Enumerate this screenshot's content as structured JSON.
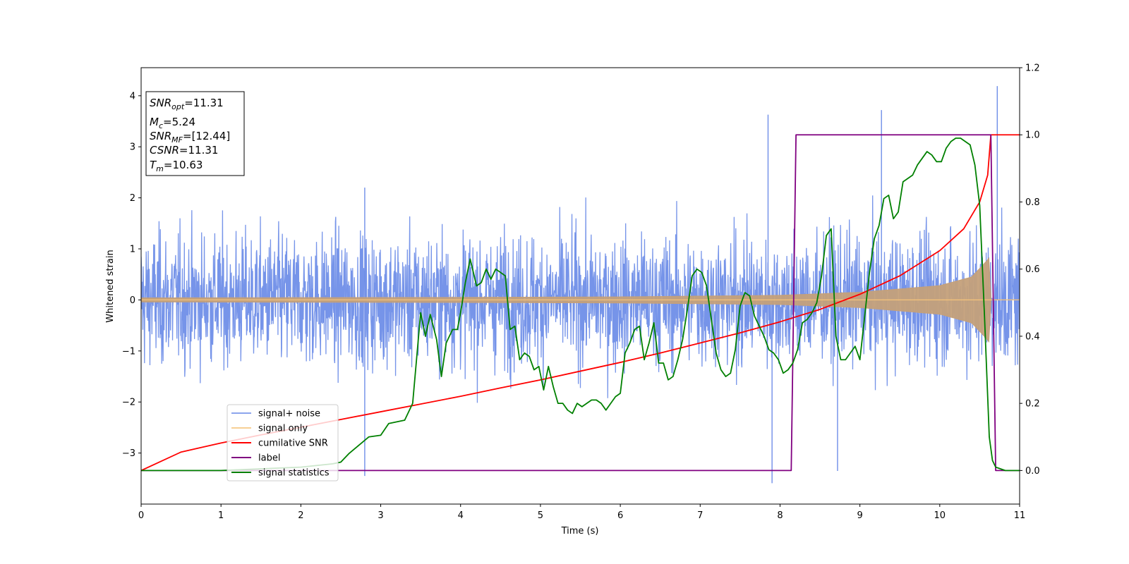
{
  "chart_data": {
    "type": "line",
    "title": "",
    "xlabel": "Time (s)",
    "ylabel": "Whitened strain",
    "xlim": [
      0,
      11
    ],
    "ylim_left": [
      -4,
      4.55
    ],
    "ylim_right": [
      -0.1,
      1.2
    ],
    "x_ticks": [
      "0",
      "1",
      "2",
      "3",
      "4",
      "5",
      "6",
      "7",
      "8",
      "9",
      "10",
      "11"
    ],
    "y_ticks_left": [
      "−3",
      "−2",
      "−1",
      "0",
      "1",
      "2",
      "3",
      "4"
    ],
    "y_ticks_right": [
      "0.0",
      "0.2",
      "0.4",
      "0.6",
      "0.8",
      "1.0",
      "1.2"
    ],
    "grid": false,
    "legend_position": "lower-left",
    "legend": [
      "signal+ noise",
      "signal only",
      "cumilative SNR",
      "label",
      "signal statistics"
    ],
    "colors": {
      "noise": "#6f8ee8",
      "signal": "#f5c37a",
      "overlap": "#c4a07a",
      "csnr": "#ff0000",
      "label": "#800080",
      "stats": "#008000"
    },
    "annotation": {
      "snr_opt": {
        "base": "SNR",
        "sub": "opt",
        "value": "=11.31"
      },
      "mc": {
        "base": "M",
        "sub": "c",
        "value": "=5.24"
      },
      "snr_mf": {
        "base": "SNR",
        "sub": "MF",
        "value": "=[12.44]"
      },
      "csnr": {
        "base": "CSNR",
        "sub": "",
        "value": "=11.31"
      },
      "tm": {
        "base": "T",
        "sub": "m",
        "value": "=10.63"
      }
    },
    "series": [
      {
        "name": "signal+ noise",
        "axis": "left",
        "style": "dense noise band",
        "core_band": [
          -1.5,
          1.5
        ],
        "peaks_max": [
          [
            2.8,
            2.2
          ],
          [
            7.85,
            3.63
          ],
          [
            9.27,
            3.72
          ],
          [
            10.72,
            4.19
          ]
        ],
        "peaks_min": [
          [
            2.8,
            -3.45
          ],
          [
            7.9,
            -3.59
          ],
          [
            8.72,
            -3.35
          ]
        ]
      },
      {
        "name": "signal only",
        "axis": "left",
        "style": "chirp envelope",
        "envelope": [
          [
            0,
            0.04
          ],
          [
            2,
            0.045
          ],
          [
            4,
            0.05
          ],
          [
            6,
            0.06
          ],
          [
            8,
            0.09
          ],
          [
            9,
            0.15
          ],
          [
            10,
            0.28
          ],
          [
            10.4,
            0.45
          ],
          [
            10.58,
            0.75
          ],
          [
            10.63,
            0.85
          ],
          [
            10.64,
            0.0
          ],
          [
            11,
            0.0
          ]
        ]
      },
      {
        "name": "cumilative SNR",
        "axis": "right",
        "x": [
          0,
          0.5,
          1,
          1.5,
          2,
          2.5,
          3,
          3.5,
          4,
          4.5,
          5,
          5.5,
          6,
          6.5,
          7,
          7.5,
          8,
          8.5,
          9,
          9.5,
          10,
          10.3,
          10.5,
          10.6,
          10.64,
          11
        ],
        "values": [
          0.0,
          0.055,
          0.082,
          0.106,
          0.129,
          0.152,
          0.175,
          0.198,
          0.221,
          0.246,
          0.27,
          0.296,
          0.322,
          0.35,
          0.38,
          0.41,
          0.443,
          0.48,
          0.525,
          0.58,
          0.655,
          0.72,
          0.8,
          0.88,
          1.0,
          1.0
        ]
      },
      {
        "name": "label",
        "axis": "right",
        "x": [
          0,
          8.14,
          8.2,
          10.64,
          10.7,
          11
        ],
        "values": [
          0,
          0,
          1,
          1,
          0,
          0
        ]
      },
      {
        "name": "signal statistics",
        "axis": "right",
        "x": [
          0,
          0.5,
          1.0,
          1.5,
          2.0,
          2.2,
          2.4,
          2.5,
          2.6,
          2.7,
          2.75,
          2.85,
          3.0,
          3.1,
          3.2,
          3.3,
          3.4,
          3.5,
          3.56,
          3.62,
          3.7,
          3.76,
          3.82,
          3.9,
          3.96,
          4.0,
          4.06,
          4.12,
          4.2,
          4.26,
          4.32,
          4.38,
          4.44,
          4.5,
          4.56,
          4.62,
          4.68,
          4.74,
          4.8,
          4.86,
          4.92,
          4.98,
          5.04,
          5.1,
          5.16,
          5.22,
          5.28,
          5.34,
          5.4,
          5.46,
          5.52,
          5.58,
          5.64,
          5.7,
          5.76,
          5.82,
          5.88,
          5.94,
          6.0,
          6.06,
          6.12,
          6.18,
          6.24,
          6.3,
          6.36,
          6.42,
          6.48,
          6.54,
          6.6,
          6.66,
          6.72,
          6.78,
          6.84,
          6.9,
          6.96,
          7.02,
          7.08,
          7.14,
          7.2,
          7.26,
          7.32,
          7.38,
          7.44,
          7.5,
          7.56,
          7.62,
          7.68,
          7.74,
          7.8,
          7.86,
          7.92,
          7.98,
          8.04,
          8.1,
          8.16,
          8.22,
          8.28,
          8.34,
          8.4,
          8.46,
          8.52,
          8.58,
          8.64,
          8.7,
          8.76,
          8.82,
          8.88,
          8.94,
          9.0,
          9.06,
          9.12,
          9.18,
          9.24,
          9.3,
          9.36,
          9.42,
          9.48,
          9.54,
          9.6,
          9.66,
          9.72,
          9.78,
          9.84,
          9.9,
          9.96,
          10.02,
          10.08,
          10.14,
          10.2,
          10.26,
          10.32,
          10.38,
          10.44,
          10.5,
          10.56,
          10.62,
          10.66,
          10.7,
          10.76,
          10.82,
          10.88,
          11.0
        ],
        "values": [
          0.0,
          0.0,
          0.0,
          0.005,
          0.01,
          0.015,
          0.02,
          0.025,
          0.05,
          0.07,
          0.08,
          0.1,
          0.105,
          0.14,
          0.145,
          0.15,
          0.2,
          0.47,
          0.4,
          0.465,
          0.39,
          0.28,
          0.38,
          0.42,
          0.42,
          0.47,
          0.56,
          0.63,
          0.55,
          0.56,
          0.6,
          0.57,
          0.6,
          0.59,
          0.58,
          0.42,
          0.43,
          0.33,
          0.35,
          0.34,
          0.3,
          0.31,
          0.24,
          0.31,
          0.25,
          0.2,
          0.2,
          0.18,
          0.17,
          0.2,
          0.19,
          0.2,
          0.21,
          0.21,
          0.2,
          0.18,
          0.2,
          0.22,
          0.23,
          0.35,
          0.38,
          0.42,
          0.43,
          0.33,
          0.38,
          0.44,
          0.32,
          0.32,
          0.27,
          0.28,
          0.33,
          0.39,
          0.48,
          0.58,
          0.6,
          0.59,
          0.55,
          0.45,
          0.35,
          0.3,
          0.28,
          0.29,
          0.36,
          0.49,
          0.53,
          0.52,
          0.46,
          0.43,
          0.4,
          0.36,
          0.35,
          0.33,
          0.29,
          0.3,
          0.32,
          0.36,
          0.44,
          0.45,
          0.47,
          0.5,
          0.58,
          0.7,
          0.72,
          0.4,
          0.33,
          0.33,
          0.35,
          0.37,
          0.33,
          0.46,
          0.59,
          0.69,
          0.73,
          0.81,
          0.82,
          0.75,
          0.77,
          0.86,
          0.87,
          0.88,
          0.91,
          0.93,
          0.95,
          0.94,
          0.92,
          0.92,
          0.96,
          0.98,
          0.99,
          0.99,
          0.98,
          0.97,
          0.91,
          0.79,
          0.46,
          0.1,
          0.03,
          0.01,
          0.005,
          0.0,
          0.0,
          0.0
        ]
      }
    ]
  }
}
